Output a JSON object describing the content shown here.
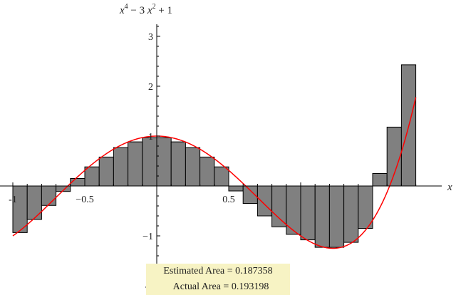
{
  "chart_data": {
    "type": "bar",
    "title_parts": {
      "a": "x",
      "a_exp": "4",
      "b": " − 3 ",
      "c": "x",
      "c_exp": "2",
      "d": " + 1"
    },
    "xlabel": "x",
    "ylabel": "",
    "xlim": [
      -1.0,
      1.8
    ],
    "ylim": [
      -2.0,
      3.3
    ],
    "x_ticks": [
      -1,
      -0.5,
      0.5
    ],
    "x_tick_labels": [
      "-1",
      "−0.5",
      "0.5"
    ],
    "y_ticks": [
      -2,
      -1,
      1,
      2,
      3
    ],
    "y_tick_labels": [
      "-2",
      "−1",
      "1",
      "2",
      "3"
    ],
    "bar_width": 0.1,
    "bar_color": "#808080",
    "curve_color": "#ff0000",
    "bars": [
      {
        "x0": -1.0,
        "value": -0.935
      },
      {
        "x0": -0.9,
        "value": -0.672
      },
      {
        "x0": -0.8,
        "value": -0.39
      },
      {
        "x0": -0.7,
        "value": -0.11
      },
      {
        "x0": -0.6,
        "value": 0.15
      },
      {
        "x0": -0.5,
        "value": 0.383
      },
      {
        "x0": -0.4,
        "value": 0.58
      },
      {
        "x0": -0.3,
        "value": 0.77
      },
      {
        "x0": -0.2,
        "value": 0.885
      },
      {
        "x0": -0.1,
        "value": 0.97
      },
      {
        "x0": 0.0,
        "value": 0.97
      },
      {
        "x0": 0.1,
        "value": 0.885
      },
      {
        "x0": 0.2,
        "value": 0.77
      },
      {
        "x0": 0.3,
        "value": 0.58
      },
      {
        "x0": 0.4,
        "value": 0.383
      },
      {
        "x0": 0.5,
        "value": -0.1
      },
      {
        "x0": 0.6,
        "value": -0.35
      },
      {
        "x0": 0.7,
        "value": -0.6
      },
      {
        "x0": 0.8,
        "value": -0.82
      },
      {
        "x0": 0.9,
        "value": -0.97
      },
      {
        "x0": 1.0,
        "value": -1.08
      },
      {
        "x0": 1.1,
        "value": -1.23
      },
      {
        "x0": 1.2,
        "value": -1.23
      },
      {
        "x0": 1.3,
        "value": -1.13
      },
      {
        "x0": 1.4,
        "value": -0.85
      },
      {
        "x0": 1.5,
        "value": 0.25
      },
      {
        "x0": 1.6,
        "value": 1.18
      },
      {
        "x0": 1.7,
        "value": 2.43
      }
    ],
    "curve": {
      "function": "x^4 - 3x^2 + 1",
      "x_range": [
        -1.0,
        1.8
      ]
    }
  },
  "annotations": {
    "estimated": "Estimated Area = 0.187358",
    "actual": "Actual Area = 0.193198"
  }
}
